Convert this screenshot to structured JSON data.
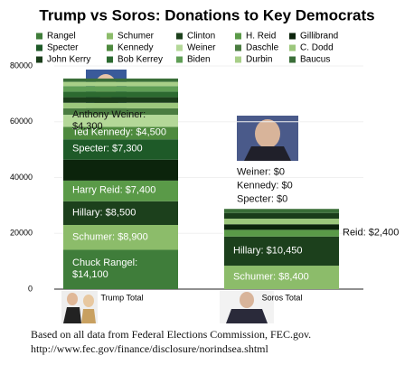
{
  "chart_data": {
    "type": "stacked_bar",
    "title": "Trump vs Soros: Donations to Key Democrats",
    "categories": [
      "Trump Total",
      "Soros Total"
    ],
    "ylim": [
      0,
      80000
    ],
    "yticks": [
      0,
      20000,
      40000,
      60000,
      80000
    ],
    "grid": true,
    "series": [
      {
        "name": "Rangel",
        "color": "#3f7d3a",
        "values": [
          14100,
          0
        ],
        "value_labels": [
          "Chuck Rangel: $14,100",
          null
        ]
      },
      {
        "name": "Schumer",
        "color": "#8cbc6a",
        "values": [
          8900,
          8400
        ],
        "value_labels": [
          "Schumer: $8,900",
          "Schumer: $8,400"
        ]
      },
      {
        "name": "Clinton",
        "color": "#1c401c",
        "values": [
          8500,
          10450
        ],
        "value_labels": [
          "Hillary: $8,500",
          "Hillary: $10,450"
        ]
      },
      {
        "name": "H. Reid",
        "color": "#5a9a48",
        "values": [
          7400,
          2400
        ],
        "value_labels": [
          "Harry Reid: $7,400",
          "Reid: $2,400"
        ]
      },
      {
        "name": "Gillibrand",
        "color": "#0c240c",
        "values": [
          7500,
          2000
        ]
      },
      {
        "name": "Specter",
        "color": "#1e5a28",
        "values": [
          7300,
          0
        ],
        "value_labels": [
          "Specter: $7,300",
          "Specter: $0"
        ]
      },
      {
        "name": "Kennedy",
        "color": "#4e8a3e",
        "values": [
          4500,
          0
        ],
        "value_labels": [
          "Ted Kennedy: $4,500",
          "Kennedy: $0"
        ]
      },
      {
        "name": "Weiner",
        "color": "#b4d898",
        "values": [
          4300,
          0
        ],
        "value_labels": [
          "Anthony Weiner: $4,300",
          "Weiner: $0"
        ]
      },
      {
        "name": "Daschle",
        "color": "#4a7c40",
        "values": [
          2300,
          0
        ]
      },
      {
        "name": "C. Dodd",
        "color": "#9cc77c",
        "values": [
          2000,
          2000
        ]
      },
      {
        "name": "John Kerry",
        "color": "#1a3d1a",
        "values": [
          2000,
          2000
        ]
      },
      {
        "name": "Bob Kerrey",
        "color": "#2c6a30",
        "values": [
          2000,
          0
        ]
      },
      {
        "name": "Biden",
        "color": "#5f9e55",
        "values": [
          2000,
          0
        ]
      },
      {
        "name": "Durbin",
        "color": "#a8cf88",
        "values": [
          1500,
          0
        ]
      },
      {
        "name": "Baucus",
        "color": "#3a6e38",
        "values": [
          1200,
          1500
        ]
      }
    ]
  },
  "footnote": [
    "Based on all data from Federal Elections Commission, FEC.gov.",
    "http://www.fec.gov/finance/disclosure/norindsea.shtml"
  ]
}
